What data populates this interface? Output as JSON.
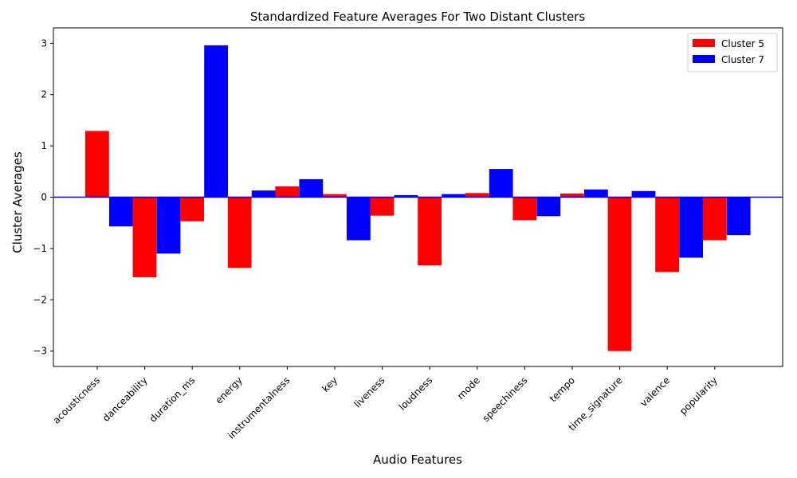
{
  "chart_data": {
    "type": "bar",
    "title": "Standardized Feature Averages For Two Distant Clusters",
    "xlabel": "Audio Features",
    "ylabel": "Cluster Averages",
    "ylim": [
      -3.3,
      3.3
    ],
    "yticks": [
      -3,
      -2,
      -1,
      0,
      1,
      2,
      3
    ],
    "ytick_labels": [
      "−3",
      "−2",
      "−1",
      "0",
      "1",
      "2",
      "3"
    ],
    "grid": false,
    "legend_position": "top-right",
    "zero_line_color": "#0000ff",
    "categories": [
      "acousticness",
      "danceability",
      "duration_ms",
      "energy",
      "instrumentalness",
      "key",
      "liveness",
      "loudness",
      "mode",
      "speechiness",
      "tempo",
      "time_signature",
      "valence",
      "popularity"
    ],
    "series": [
      {
        "name": "Cluster 5",
        "color": "#ff0000",
        "values": [
          1.29,
          -1.56,
          -0.47,
          -1.38,
          0.21,
          0.06,
          -0.36,
          -1.33,
          0.08,
          -0.45,
          0.07,
          -3.0,
          -1.46,
          -0.84
        ]
      },
      {
        "name": "Cluster 7",
        "color": "#0000ff",
        "values": [
          -0.57,
          -1.1,
          2.96,
          0.13,
          0.35,
          -0.84,
          0.04,
          0.06,
          0.55,
          -0.37,
          0.15,
          0.12,
          -1.18,
          -0.74
        ]
      }
    ]
  }
}
